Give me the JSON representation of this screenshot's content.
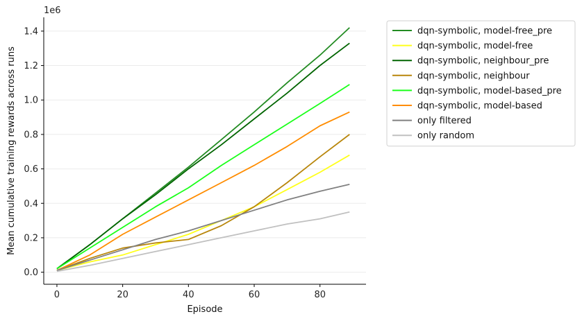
{
  "chart_data": {
    "type": "line",
    "xlabel": "Episode",
    "ylabel": "Mean cumulative training rewards across runs",
    "y_offset_label": "1e6",
    "xlim": [
      -4,
      94
    ],
    "ylim": [
      -0.07,
      1.48
    ],
    "x_ticks": [
      0,
      20,
      40,
      60,
      80
    ],
    "y_ticks": [
      0.0,
      0.2,
      0.4,
      0.6,
      0.8,
      1.0,
      1.2,
      1.4
    ],
    "y_tick_labels": [
      "0.0",
      "0.2",
      "0.4",
      "0.6",
      "0.8",
      "1.0",
      "1.2",
      "1.4"
    ],
    "grid": "horizontal",
    "legend_position": "outside-right",
    "x": [
      0,
      10,
      20,
      30,
      40,
      50,
      60,
      70,
      80,
      89
    ],
    "series": [
      {
        "name": "dqn-symbolic, model-free_pre",
        "color": "#228b22",
        "values": [
          0.02,
          0.16,
          0.31,
          0.46,
          0.61,
          0.77,
          0.93,
          1.1,
          1.26,
          1.42
        ]
      },
      {
        "name": "dqn-symbolic, model-free",
        "color": "#ffff1a",
        "values": [
          0.01,
          0.06,
          0.1,
          0.16,
          0.22,
          0.3,
          0.38,
          0.48,
          0.58,
          0.68
        ]
      },
      {
        "name": "dqn-symbolic, neighbour_pre",
        "color": "#006400",
        "values": [
          0.02,
          0.16,
          0.31,
          0.45,
          0.6,
          0.74,
          0.89,
          1.04,
          1.2,
          1.33
        ]
      },
      {
        "name": "dqn-symbolic, neighbour",
        "color": "#b8860b",
        "values": [
          0.01,
          0.08,
          0.14,
          0.17,
          0.19,
          0.27,
          0.38,
          0.52,
          0.67,
          0.8
        ]
      },
      {
        "name": "dqn-symbolic, model-based_pre",
        "color": "#1aff1a",
        "values": [
          0.02,
          0.14,
          0.26,
          0.38,
          0.49,
          0.62,
          0.74,
          0.86,
          0.98,
          1.09
        ]
      },
      {
        "name": "dqn-symbolic, model-based",
        "color": "#ff8c00",
        "values": [
          0.01,
          0.1,
          0.22,
          0.32,
          0.42,
          0.52,
          0.62,
          0.73,
          0.85,
          0.93
        ]
      },
      {
        "name": "only filtered",
        "color": "#808080",
        "values": [
          0.01,
          0.07,
          0.13,
          0.19,
          0.24,
          0.3,
          0.36,
          0.42,
          0.47,
          0.51
        ]
      },
      {
        "name": "only random",
        "color": "#c0c0c0",
        "values": [
          0.005,
          0.04,
          0.08,
          0.12,
          0.16,
          0.2,
          0.24,
          0.28,
          0.31,
          0.35
        ]
      }
    ]
  }
}
